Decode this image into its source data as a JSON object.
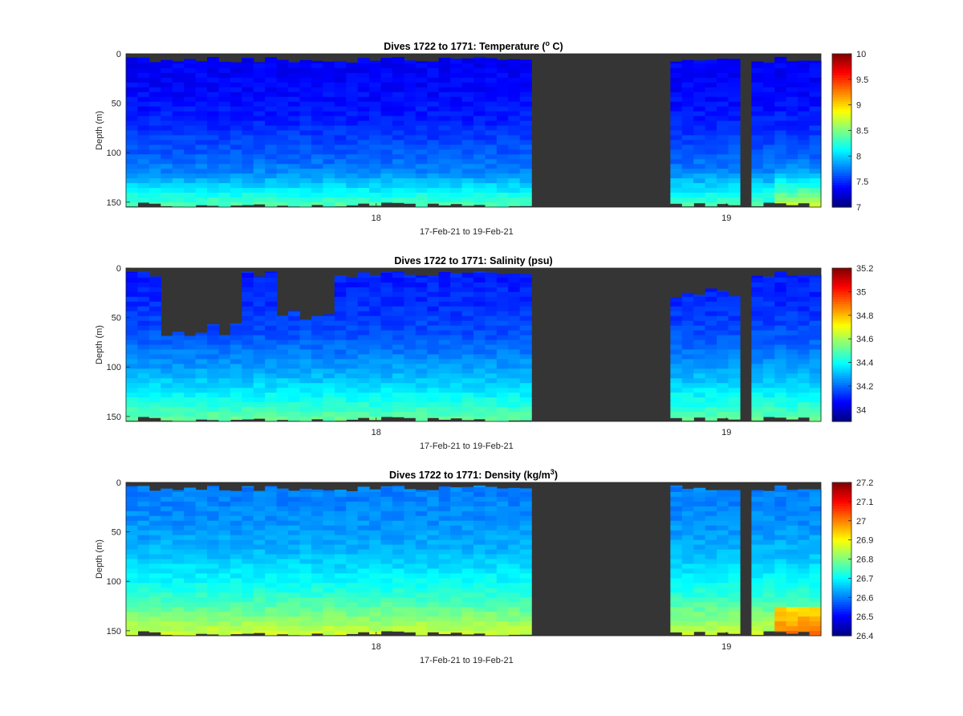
{
  "chart_data": [
    {
      "type": "heatmap",
      "title_prefix": "Dives 1722 to 1771: Temperature (",
      "title_sup": "o",
      "title_suffix": " C)",
      "xlabel": "17-Feb-21 to 19-Feb-21",
      "ylabel": "Depth (m)",
      "x_ticks": [
        "18",
        "19"
      ],
      "y_ticks": [
        "0",
        "50",
        "100",
        "150"
      ],
      "ylim": [
        155,
        0
      ],
      "colorbar_ticks": [
        "10",
        "9.5",
        "9",
        "8.5",
        "8",
        "7.5",
        "7"
      ],
      "colorbar_range": [
        7,
        10
      ],
      "colormap": "jet",
      "nodata_color": "#353535",
      "field": {
        "surface_value": 7.35,
        "deep_value": 8.05,
        "warm_bottom_value": 8.3,
        "summary": "Cold water (~7.2–7.5 °C) through most of the column; warmer (~8–8.4 °C) near 130–155 m"
      },
      "data_gap": "no dives between late 18-Feb and ~18.9 Feb"
    },
    {
      "type": "heatmap",
      "title_prefix": "Dives 1722 to 1771: Salinity (psu)",
      "title_sup": "",
      "title_suffix": "",
      "xlabel": "17-Feb-21 to 19-Feb-21",
      "ylabel": "Depth (m)",
      "x_ticks": [
        "18",
        "19"
      ],
      "y_ticks": [
        "0",
        "50",
        "100",
        "150"
      ],
      "ylim": [
        155,
        0
      ],
      "colorbar_ticks": [
        "35.2",
        "35",
        "34.8",
        "34.6",
        "34.4",
        "34.2",
        "34"
      ],
      "colorbar_range": [
        33.9,
        35.2
      ],
      "colormap": "jet",
      "nodata_color": "#353535",
      "field": {
        "surface_value": 34.1,
        "deep_value": 34.5,
        "summary": "Fresher (~34.0–34.2) in upper layer, saltier (~34.4–34.7) toward 150 m"
      },
      "data_gap": "no dives between late 18-Feb and ~18.9 Feb"
    },
    {
      "type": "heatmap",
      "title_prefix": "Dives 1722 to 1771: Density (kg/m",
      "title_sup": "3",
      "title_suffix": ")",
      "xlabel": "17-Feb-21 to 19-Feb-21",
      "ylabel": "Depth (m)",
      "x_ticks": [
        "18",
        "19"
      ],
      "y_ticks": [
        "0",
        "50",
        "100",
        "150"
      ],
      "ylim": [
        155,
        0
      ],
      "colorbar_ticks": [
        "27.2",
        "27.1",
        "27",
        "26.9",
        "26.8",
        "26.7",
        "26.6",
        "26.5",
        "26.4"
      ],
      "colorbar_range": [
        26.4,
        27.2
      ],
      "colormap": "jet",
      "nodata_color": "#353535",
      "field": {
        "surface_value": 26.6,
        "deep_value": 26.85,
        "summary": "Lighter (~26.5–26.6) near surface, denser (~26.8–26.95) near 150 m"
      },
      "data_gap": "no dives between late 18-Feb and ~18.9 Feb"
    }
  ]
}
